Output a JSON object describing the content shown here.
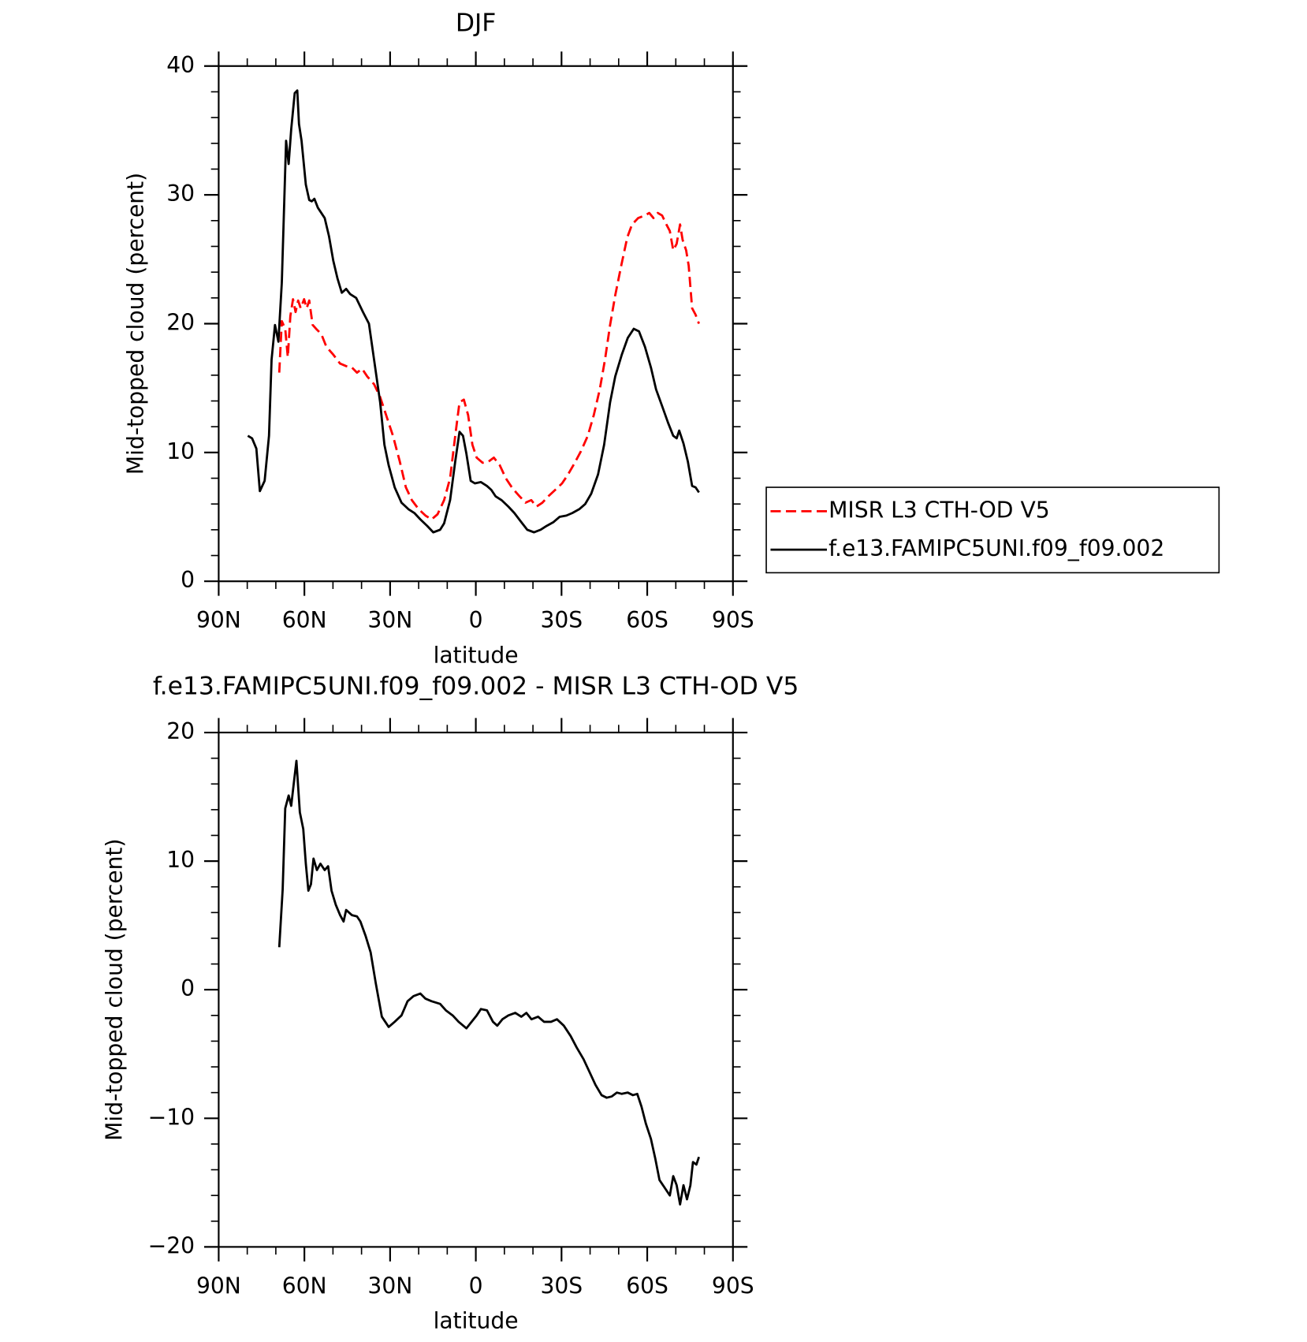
{
  "chart_data": [
    {
      "type": "line",
      "title": "DJF",
      "xlabel": "latitude",
      "ylabel": "Mid-topped cloud (percent)",
      "xlim": [
        90,
        -90
      ],
      "xticks": [
        {
          "value": 90,
          "label": "90N"
        },
        {
          "value": 60,
          "label": "60N"
        },
        {
          "value": 30,
          "label": "30N"
        },
        0,
        {
          "value": -30,
          "label": "30S"
        },
        {
          "value": -60,
          "label": "60S"
        },
        {
          "value": -90,
          "label": "90S"
        }
      ],
      "ylim": [
        0,
        40
      ],
      "yticks": [
        0,
        10,
        20,
        30,
        40
      ],
      "x_minor": 3,
      "y_minor": 5,
      "legend": "right",
      "series": [
        {
          "name": "MISR L3 CTH-OD V5",
          "color": "#ff0000",
          "dash": true,
          "x": [
            68.8,
            67.9,
            66.7,
            65.8,
            64.9,
            64.0,
            63.1,
            62.2,
            61.3,
            60.1,
            59.2,
            58.3,
            57.1,
            55.9,
            54.1,
            52.3,
            49.9,
            47.5,
            45.4,
            43.4,
            41.6,
            39.8,
            38.0,
            35.6,
            33.5,
            31.4,
            29.0,
            26.6,
            24.5,
            22.4,
            20.0,
            17.6,
            15.5,
            13.4,
            11.1,
            9.0,
            7.2,
            5.7,
            4.2,
            2.7,
            1.2,
            -0.3,
            -2.4,
            -4.5,
            -6.3,
            -8.4,
            -10.5,
            -12.9,
            -15.3,
            -17.4,
            -19.4,
            -21.2,
            -23.3,
            -25.4,
            -27.8,
            -30.2,
            -32.3,
            -34.4,
            -36.8,
            -39.2,
            -41.3,
            -43.4,
            -45.2,
            -47.0,
            -48.8,
            -50.9,
            -53.0,
            -54.7,
            -56.8,
            -59.2,
            -60.7,
            -62.2,
            -63.7,
            -65.2,
            -66.7,
            -67.9,
            -69.1,
            -70.3,
            -71.5,
            -72.4,
            -73.6,
            -74.5,
            -75.7,
            -76.9,
            -78.1
          ],
          "values": [
            16.2,
            20.2,
            19.6,
            17.4,
            20.6,
            21.9,
            20.9,
            21.8,
            21.2,
            21.9,
            21.2,
            21.8,
            19.9,
            19.6,
            19.2,
            18.2,
            17.6,
            16.9,
            16.7,
            16.6,
            16.2,
            16.5,
            15.9,
            15.3,
            14.3,
            12.9,
            11.3,
            9.3,
            7.3,
            6.3,
            5.6,
            5.1,
            4.8,
            5.2,
            6.3,
            8.0,
            11.3,
            13.9,
            14.1,
            12.9,
            10.6,
            9.6,
            9.2,
            9.3,
            9.6,
            9.0,
            8.0,
            7.2,
            6.6,
            6.1,
            6.3,
            5.8,
            6.1,
            6.6,
            7.1,
            7.6,
            8.3,
            9.1,
            10.1,
            11.3,
            12.9,
            14.9,
            17.2,
            19.9,
            22.2,
            24.5,
            26.7,
            27.7,
            28.2,
            28.4,
            28.6,
            28.2,
            28.6,
            28.4,
            27.7,
            27.2,
            25.7,
            26.2,
            27.7,
            26.5,
            25.7,
            24.5,
            21.2,
            20.7,
            20.0
          ]
        },
        {
          "name": "f.e13.FAMIPC5UNI.f09_f09.002",
          "color": "#000000",
          "dash": false,
          "x": [
            79.8,
            78.3,
            76.8,
            75.6,
            73.9,
            72.4,
            71.5,
            70.3,
            69.1,
            67.9,
            66.4,
            65.5,
            64.6,
            63.4,
            62.5,
            61.9,
            61.0,
            59.5,
            58.3,
            57.4,
            56.5,
            55.3,
            52.9,
            51.4,
            49.9,
            48.4,
            46.9,
            45.4,
            44.0,
            41.9,
            39.5,
            37.4,
            35.6,
            33.5,
            32.0,
            30.5,
            28.4,
            26.0,
            23.6,
            21.5,
            19.4,
            17.0,
            14.9,
            12.5,
            11.1,
            9.0,
            7.2,
            5.7,
            4.5,
            3.3,
            1.8,
            0.3,
            -1.8,
            -3.9,
            -5.4,
            -6.9,
            -9.0,
            -11.4,
            -13.5,
            -15.9,
            -18.0,
            -20.4,
            -22.7,
            -24.8,
            -27.2,
            -29.3,
            -31.7,
            -33.8,
            -36.2,
            -38.3,
            -40.4,
            -42.8,
            -44.9,
            -47.0,
            -48.8,
            -51.1,
            -53.2,
            -55.3,
            -57.1,
            -59.2,
            -61.3,
            -63.1,
            -65.2,
            -67.3,
            -69.1,
            -70.3,
            -71.2,
            -72.7,
            -74.2,
            -75.7,
            -76.9,
            -78.1
          ],
          "values": [
            11.3,
            11.1,
            10.3,
            7.0,
            7.8,
            11.3,
            17.2,
            19.9,
            18.6,
            23.2,
            34.2,
            32.4,
            35.1,
            37.9,
            38.1,
            35.5,
            34.2,
            30.8,
            29.6,
            29.5,
            29.7,
            29.0,
            28.2,
            26.8,
            24.9,
            23.5,
            22.4,
            22.7,
            22.3,
            22.0,
            20.9,
            20.0,
            17.2,
            13.9,
            10.6,
            9.0,
            7.3,
            6.1,
            5.6,
            5.3,
            4.8,
            4.3,
            3.8,
            4.0,
            4.5,
            6.3,
            9.3,
            11.6,
            11.3,
            9.9,
            7.8,
            7.6,
            7.7,
            7.4,
            7.1,
            6.6,
            6.3,
            5.8,
            5.3,
            4.6,
            4.0,
            3.8,
            4.0,
            4.3,
            4.6,
            5.0,
            5.1,
            5.3,
            5.6,
            6.0,
            6.8,
            8.3,
            10.6,
            13.9,
            15.9,
            17.6,
            18.9,
            19.6,
            19.4,
            18.2,
            16.6,
            14.9,
            13.6,
            12.3,
            11.3,
            11.1,
            11.7,
            10.7,
            9.3,
            7.4,
            7.3,
            6.9
          ]
        }
      ]
    },
    {
      "type": "line",
      "title": "f.e13.FAMIPC5UNI.f09_f09.002 - MISR L3 CTH-OD V5",
      "xlabel": "latitude",
      "ylabel": "Mid-topped cloud (percent)",
      "xlim": [
        90,
        -90
      ],
      "xticks": [
        {
          "value": 90,
          "label": "90N"
        },
        {
          "value": 60,
          "label": "60N"
        },
        {
          "value": 30,
          "label": "30N"
        },
        0,
        {
          "value": -30,
          "label": "30S"
        },
        {
          "value": -60,
          "label": "60S"
        },
        {
          "value": -90,
          "label": "90S"
        }
      ],
      "ylim": [
        -20,
        20
      ],
      "yticks": [
        {
          "value": -20,
          "label": "−20"
        },
        {
          "value": -10,
          "label": "−10"
        },
        0,
        10,
        20
      ],
      "x_minor": 3,
      "y_minor": 5,
      "series": [
        {
          "color": "#000000",
          "dash": false,
          "x": [
            68.8,
            67.6,
            66.7,
            65.5,
            64.6,
            63.7,
            62.8,
            61.6,
            60.4,
            59.5,
            58.6,
            57.7,
            56.8,
            55.6,
            54.4,
            52.9,
            51.7,
            50.5,
            49.0,
            47.5,
            46.3,
            45.4,
            43.4,
            41.6,
            40.4,
            38.6,
            36.8,
            35.0,
            32.9,
            30.5,
            28.4,
            26.0,
            23.9,
            21.8,
            19.4,
            17.6,
            15.5,
            12.5,
            10.5,
            8.1,
            6.0,
            3.3,
            1.5,
            -0.3,
            -1.8,
            -3.9,
            -6.0,
            -7.5,
            -9.3,
            -11.4,
            -13.8,
            -15.9,
            -17.7,
            -19.5,
            -21.8,
            -23.9,
            -26.3,
            -28.4,
            -30.8,
            -33.2,
            -35.3,
            -37.7,
            -39.8,
            -41.9,
            -44.0,
            -45.8,
            -47.6,
            -49.4,
            -51.1,
            -53.2,
            -55.0,
            -56.5,
            -58.0,
            -59.5,
            -61.3,
            -62.8,
            -64.3,
            -66.1,
            -67.9,
            -69.1,
            -70.3,
            -71.5,
            -72.7,
            -73.9,
            -75.1,
            -76.0,
            -77.2,
            -78.1
          ],
          "values": [
            3.3,
            7.8,
            14.1,
            15.1,
            14.3,
            16.1,
            17.8,
            13.8,
            12.5,
            9.8,
            7.7,
            8.2,
            10.2,
            9.3,
            9.8,
            9.3,
            9.6,
            7.7,
            6.6,
            5.8,
            5.3,
            6.2,
            5.8,
            5.7,
            5.3,
            4.2,
            2.9,
            0.5,
            -2.1,
            -2.9,
            -2.5,
            -2.0,
            -0.9,
            -0.5,
            -0.3,
            -0.7,
            -0.9,
            -1.1,
            -1.6,
            -2.0,
            -2.5,
            -3.0,
            -2.5,
            -2.0,
            -1.5,
            -1.6,
            -2.5,
            -2.8,
            -2.3,
            -2.0,
            -1.8,
            -2.1,
            -1.8,
            -2.3,
            -2.1,
            -2.5,
            -2.5,
            -2.3,
            -2.8,
            -3.6,
            -4.5,
            -5.4,
            -6.4,
            -7.4,
            -8.2,
            -8.4,
            -8.3,
            -8.0,
            -8.1,
            -8.0,
            -8.2,
            -8.1,
            -9.1,
            -10.4,
            -11.6,
            -13.1,
            -14.8,
            -15.4,
            -16.0,
            -14.5,
            -15.2,
            -16.7,
            -15.2,
            -16.3,
            -15.2,
            -13.4,
            -13.6,
            -13.0
          ]
        }
      ]
    }
  ]
}
